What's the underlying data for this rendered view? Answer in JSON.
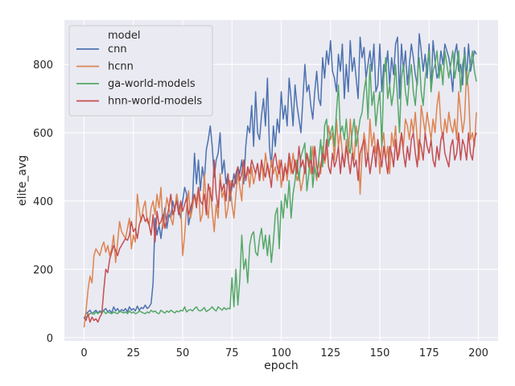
{
  "chart_data": {
    "type": "line",
    "xlabel": "epoch",
    "ylabel": "elite_avg",
    "xlim": [
      -10,
      210
    ],
    "ylim": [
      -10,
      930
    ],
    "xticks": [
      0,
      25,
      50,
      75,
      100,
      125,
      150,
      175,
      200
    ],
    "yticks": [
      0,
      200,
      400,
      600,
      800
    ],
    "grid": true,
    "legend": {
      "title": "model",
      "placement": "top-left"
    },
    "x_start": 0,
    "x_end": 199,
    "series": [
      {
        "name": "cnn",
        "color": "#4c72b0",
        "values": [
          55,
          70,
          75,
          80,
          70,
          75,
          80,
          72,
          78,
          75,
          80,
          85,
          75,
          80,
          72,
          90,
          78,
          85,
          75,
          82,
          78,
          85,
          75,
          90,
          80,
          85,
          78,
          92,
          80,
          88,
          85,
          95,
          85,
          90,
          100,
          160,
          350,
          300,
          330,
          290,
          340,
          380,
          320,
          360,
          350,
          400,
          370,
          420,
          380,
          350,
          400,
          440,
          420,
          330,
          360,
          400,
          540,
          450,
          520,
          430,
          500,
          460,
          550,
          580,
          620,
          560,
          470,
          520,
          540,
          600,
          480,
          520,
          450,
          480,
          400,
          440,
          480,
          450,
          500,
          480,
          520,
          450,
          560,
          620,
          600,
          680,
          560,
          720,
          600,
          580,
          650,
          700,
          620,
          760,
          560,
          500,
          620,
          560,
          640,
          600,
          720,
          640,
          680,
          620,
          760,
          700,
          620,
          740,
          680,
          640,
          600,
          700,
          800,
          720,
          740,
          680,
          640,
          720,
          780,
          700,
          680,
          820,
          760,
          840,
          800,
          870,
          780,
          760,
          720,
          830,
          780,
          860,
          700,
          800,
          720,
          870,
          780,
          820,
          760,
          700,
          880,
          820,
          850,
          760,
          800,
          840,
          780,
          860,
          720,
          740,
          860,
          720,
          800,
          780,
          840,
          740,
          820,
          770,
          860,
          880,
          700,
          860,
          780,
          840,
          740,
          800,
          860,
          820,
          770,
          740,
          890,
          840,
          780,
          830,
          760,
          860,
          720,
          870,
          810,
          760,
          780,
          840,
          800,
          860,
          840,
          820,
          780,
          720,
          830,
          860,
          780,
          800,
          740,
          850,
          760,
          860,
          780,
          810,
          840,
          830
        ]
      },
      {
        "name": "hcnn",
        "color": "#dd8452",
        "values": [
          30,
          80,
          140,
          180,
          160,
          240,
          260,
          250,
          240,
          265,
          280,
          250,
          270,
          240,
          260,
          300,
          220,
          280,
          340,
          310,
          300,
          290,
          320,
          350,
          260,
          300,
          280,
          420,
          370,
          340,
          380,
          400,
          340,
          330,
          380,
          400,
          360,
          420,
          380,
          440,
          320,
          360,
          410,
          380,
          350,
          330,
          380,
          420,
          360,
          400,
          240,
          300,
          380,
          430,
          350,
          380,
          420,
          400,
          440,
          340,
          360,
          480,
          390,
          350,
          440,
          370,
          310,
          390,
          350,
          480,
          410,
          430,
          350,
          380,
          460,
          390,
          350,
          420,
          480,
          440,
          400,
          520,
          460,
          490,
          440,
          500,
          450,
          480,
          510,
          460,
          520,
          460,
          540,
          500,
          470,
          520,
          480,
          500,
          460,
          520,
          440,
          480,
          510,
          460,
          520,
          480,
          540,
          500,
          460,
          480,
          430,
          460,
          500,
          540,
          520,
          480,
          560,
          500,
          460,
          520,
          480,
          560,
          510,
          540,
          620,
          580,
          600,
          520,
          640,
          560,
          600,
          540,
          500,
          580,
          520,
          640,
          560,
          520,
          620,
          580,
          420,
          540,
          600,
          560,
          520,
          640,
          560,
          600,
          540,
          580,
          480,
          560,
          600,
          520,
          560,
          480,
          600,
          560,
          620,
          520,
          540,
          600,
          560,
          640,
          620,
          580,
          640,
          600,
          660,
          580,
          520,
          680,
          640,
          600,
          660,
          620,
          580,
          640,
          600,
          680,
          720,
          620,
          580,
          640,
          600,
          660,
          620,
          600,
          640,
          580,
          720,
          660,
          600,
          640,
          780,
          720,
          580,
          600,
          560,
          660
        ]
      },
      {
        "name": "ga-world-models",
        "color": "#55a868",
        "values": [
          55,
          60,
          65,
          70,
          72,
          68,
          75,
          70,
          75,
          72,
          78,
          70,
          75,
          72,
          70,
          75,
          72,
          70,
          78,
          75,
          72,
          75,
          70,
          78,
          72,
          75,
          70,
          72,
          78,
          75,
          72,
          70,
          75,
          72,
          80,
          75,
          78,
          72,
          70,
          80,
          75,
          72,
          78,
          74,
          80,
          76,
          72,
          78,
          75,
          80,
          78,
          90,
          75,
          80,
          82,
          78,
          85,
          90,
          80,
          78,
          82,
          88,
          76,
          80,
          84,
          90,
          82,
          78,
          90,
          85,
          80,
          88,
          82,
          86,
          84,
          175,
          90,
          200,
          95,
          170,
          300,
          200,
          230,
          160,
          270,
          300,
          310,
          250,
          240,
          290,
          320,
          260,
          300,
          240,
          300,
          220,
          280,
          360,
          380,
          260,
          400,
          350,
          420,
          380,
          460,
          350,
          420,
          460,
          520,
          460,
          530,
          550,
          570,
          430,
          480,
          560,
          440,
          500,
          470,
          520,
          580,
          500,
          620,
          640,
          560,
          600,
          620,
          560,
          660,
          740,
          600,
          620,
          580,
          640,
          560,
          540,
          600,
          640,
          560,
          600,
          640,
          660,
          720,
          760,
          640,
          800,
          680,
          720,
          620,
          680,
          720,
          560,
          760,
          820,
          700,
          740,
          680,
          720,
          800,
          700,
          600,
          760,
          800,
          720,
          680,
          760,
          800,
          720,
          680,
          760,
          820,
          720,
          680,
          760,
          800,
          840,
          720,
          780,
          800,
          840,
          760,
          800,
          740,
          840,
          800,
          760,
          800,
          840,
          760,
          800,
          840,
          720,
          800,
          830,
          740,
          770,
          800,
          840,
          780,
          750
        ]
      },
      {
        "name": "hnn-world-models",
        "color": "#c44e52",
        "values": [
          60,
          50,
          70,
          45,
          60,
          50,
          55,
          45,
          60,
          70,
          140,
          200,
          190,
          230,
          250,
          270,
          255,
          240,
          260,
          270,
          280,
          290,
          285,
          300,
          340,
          310,
          320,
          290,
          330,
          350,
          360,
          340,
          350,
          330,
          300,
          360,
          280,
          370,
          330,
          340,
          360,
          320,
          350,
          380,
          420,
          360,
          380,
          400,
          360,
          400,
          370,
          390,
          410,
          360,
          380,
          400,
          420,
          380,
          440,
          400,
          390,
          420,
          360,
          450,
          420,
          400,
          520,
          420,
          380,
          460,
          430,
          450,
          400,
          480,
          420,
          460,
          440,
          480,
          500,
          460,
          480,
          520,
          460,
          500,
          480,
          520,
          500,
          480,
          510,
          460,
          520,
          490,
          470,
          510,
          480,
          440,
          520,
          540,
          500,
          480,
          520,
          460,
          500,
          480,
          540,
          500,
          480,
          520,
          480,
          560,
          500,
          520,
          480,
          540,
          500,
          520,
          480,
          560,
          500,
          470,
          500,
          540,
          520,
          580,
          500,
          480,
          540,
          500,
          520,
          560,
          480,
          540,
          500,
          560,
          520,
          480,
          540,
          500,
          520,
          460,
          540,
          560,
          580,
          500,
          540,
          480,
          520,
          560,
          500,
          580,
          540,
          500,
          560,
          520,
          480,
          560,
          540,
          500,
          580,
          520,
          560,
          600,
          540,
          500,
          560,
          520,
          580,
          600,
          540,
          500,
          580,
          560,
          520,
          600,
          560,
          540,
          580,
          520,
          500,
          560,
          520,
          580,
          600,
          540,
          520,
          500,
          560,
          580,
          520,
          540,
          600,
          520,
          580,
          560,
          520,
          600,
          540,
          520,
          580,
          600
        ]
      }
    ]
  }
}
